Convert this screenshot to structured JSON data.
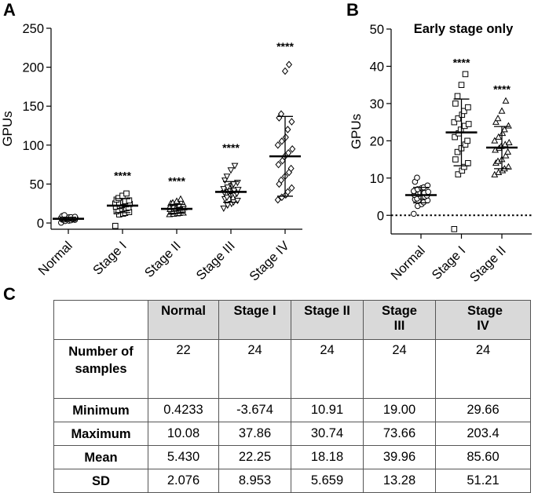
{
  "panel_labels": {
    "a": "A",
    "b": "B",
    "c": "C"
  },
  "chart_data": [
    {
      "type": "scatter",
      "title": "",
      "ylabel": "GPUs",
      "xlabel": "",
      "ylim": [
        -8,
        250
      ],
      "yticks": [
        0,
        50,
        100,
        150,
        200,
        250
      ],
      "categories": [
        "Normal",
        "Stage I",
        "Stage II",
        "Stage III",
        "Stage IV"
      ],
      "markers": [
        "circle",
        "square",
        "triangle-up",
        "triangle-down",
        "diamond"
      ],
      "significance": [
        "",
        "****",
        "****",
        "****",
        "****"
      ],
      "summary": [
        {
          "mean": 5.43,
          "sd": 2.076
        },
        {
          "mean": 22.25,
          "sd": 8.953
        },
        {
          "mean": 18.18,
          "sd": 5.659
        },
        {
          "mean": 39.96,
          "sd": 13.28
        },
        {
          "mean": 85.6,
          "sd": 51.21
        }
      ],
      "points": [
        [
          0.4,
          2.5,
          3,
          3.5,
          4,
          4.3,
          4.5,
          5,
          5,
          5.3,
          5.5,
          5.7,
          6,
          6,
          6.3,
          6.5,
          7,
          7.3,
          7.5,
          8,
          9,
          10.1
        ],
        [
          -3.7,
          11,
          12,
          13,
          14,
          15,
          17,
          18,
          19,
          20,
          21,
          22,
          23,
          24,
          24.5,
          25,
          26,
          27,
          28,
          29,
          30,
          32,
          35,
          37.9
        ],
        [
          10.9,
          11.5,
          12,
          12.5,
          13,
          14,
          14.5,
          15,
          16,
          17,
          17.5,
          18,
          18.5,
          19,
          19.5,
          20,
          21,
          22,
          23,
          24,
          25,
          26,
          28,
          30.7
        ],
        [
          19,
          23,
          25,
          27,
          29,
          31,
          33,
          35,
          36,
          38,
          39,
          40,
          41,
          42,
          43,
          44,
          46,
          48,
          50,
          52,
          55,
          60,
          68,
          73.7
        ],
        [
          29.7,
          33,
          36,
          40,
          45,
          50,
          55,
          60,
          65,
          70,
          75,
          80,
          85,
          90,
          95,
          100,
          105,
          110,
          120,
          130,
          135,
          140,
          195,
          203.4
        ]
      ]
    },
    {
      "type": "scatter",
      "title": "Early stage only",
      "ylabel": "GPUs",
      "xlabel": "",
      "ylim": [
        -5,
        50
      ],
      "yticks": [
        0,
        10,
        20,
        30,
        40,
        50
      ],
      "reference_line": 0,
      "categories": [
        "Normal",
        "Stage I",
        "Stage II"
      ],
      "markers": [
        "circle",
        "square",
        "triangle-up"
      ],
      "significance": [
        "",
        "****",
        "****"
      ],
      "summary": [
        {
          "mean": 5.43,
          "sd": 2.076
        },
        {
          "mean": 22.25,
          "sd": 8.953
        },
        {
          "mean": 18.18,
          "sd": 5.659
        }
      ],
      "points": [
        [
          0.4,
          2.5,
          3,
          3.5,
          4,
          4.3,
          4.5,
          5,
          5,
          5.3,
          5.5,
          5.7,
          6,
          6,
          6.3,
          6.5,
          7,
          7.3,
          7.5,
          8,
          9,
          10.1
        ],
        [
          -3.7,
          11,
          12,
          13,
          14,
          15,
          17,
          18,
          19,
          20,
          21,
          22,
          23,
          24,
          24.5,
          25,
          26,
          27,
          28,
          29,
          30,
          32,
          35,
          37.9
        ],
        [
          10.9,
          11.5,
          12,
          12.5,
          13,
          14,
          14.5,
          15,
          16,
          17,
          17.5,
          18,
          18.5,
          19,
          19.5,
          20,
          21,
          22,
          23,
          24,
          25,
          26,
          28,
          30.7
        ]
      ]
    }
  ],
  "table": {
    "columns": [
      "Normal",
      "Stage I",
      "Stage II",
      "Stage III",
      "Stage IV"
    ],
    "rows": [
      {
        "label": "Number of samples",
        "values": [
          "22",
          "24",
          "24",
          "24",
          "24"
        ]
      },
      {
        "label": "Minimum",
        "values": [
          "0.4233",
          "-3.674",
          "10.91",
          "19.00",
          "29.66"
        ]
      },
      {
        "label": "Maximum",
        "values": [
          "10.08",
          "37.86",
          "30.74",
          "73.66",
          "203.4"
        ]
      },
      {
        "label": "Mean",
        "values": [
          "5.430",
          "22.25",
          "18.18",
          "39.96",
          "85.60"
        ]
      },
      {
        "label": "SD",
        "values": [
          "2.076",
          "8.953",
          "5.659",
          "13.28",
          "51.21"
        ]
      }
    ]
  }
}
